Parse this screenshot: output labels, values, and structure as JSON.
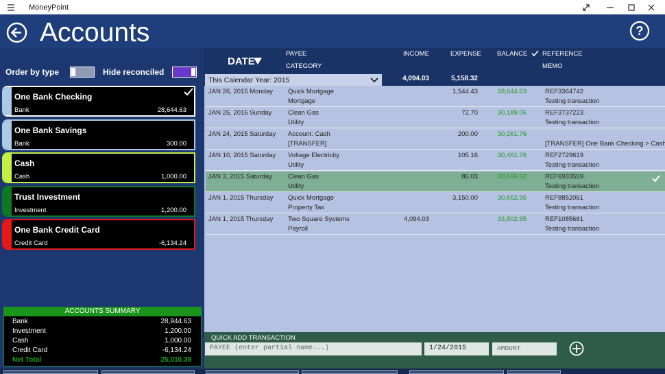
{
  "app_title": "MoneyPoint",
  "header": {
    "title": "Accounts"
  },
  "toggles": [
    {
      "label": "Order by type",
      "on": false
    },
    {
      "label": "Hide reconciled",
      "on": true
    }
  ],
  "accounts": [
    {
      "name": "One Bank Checking",
      "type": "Bank",
      "balance": "28,644.63",
      "color": "#a9cbe6",
      "selected": true
    },
    {
      "name": "One Bank Savings",
      "type": "Bank",
      "balance": "300.00",
      "color": "#a9cbe6",
      "selected": false
    },
    {
      "name": "Cash",
      "type": "Cash",
      "balance": "1,000.00",
      "color": "#c4f044",
      "selected": false
    },
    {
      "name": "Trust Investment",
      "type": "Investment",
      "balance": "1,200.00",
      "color": "#0b7a22",
      "selected": false
    },
    {
      "name": "One Bank Credit Card",
      "type": "Credit Card",
      "balance": "-6,134.24",
      "color": "#e81818",
      "selected": false
    }
  ],
  "summary": {
    "title": "ACCOUNTS SUMMARY",
    "rows": [
      {
        "label": "Bank",
        "value": "28,944.63"
      },
      {
        "label": "Investment",
        "value": "1,200.00"
      },
      {
        "label": "Cash",
        "value": "1,000.00"
      },
      {
        "label": "Credit Card",
        "value": "-6,134.24"
      }
    ],
    "total": {
      "label": "Net Total",
      "value": "25,010.39"
    }
  },
  "columns": {
    "date": "DATE",
    "payee": "PAYEE",
    "category": "CATEGORY",
    "income": "INCOME",
    "expense": "EXPENSE",
    "balance": "BALANCE",
    "reference": "REFERENCE",
    "memo": "MEMO"
  },
  "filter": "This Calendar Year: 2015",
  "totals": {
    "income": "4,094.03",
    "expense": "5,158.32"
  },
  "transactions": [
    {
      "date": "JAN 26, 2015 Monday",
      "payee": "Quick Mortgage",
      "category": "Mortgage",
      "income": null,
      "expense": "1,544.43",
      "balance": "28,644.63",
      "reference": "REF3364742",
      "memo": "Testing transaction",
      "selected": false
    },
    {
      "date": "JAN 25, 2015 Sunday",
      "payee": "Clean Gas",
      "category": "Utility",
      "income": null,
      "expense": "72.70",
      "balance": "30,189.06",
      "reference": "REF3737223",
      "memo": "Testing transaction",
      "selected": false
    },
    {
      "date": "JAN 24, 2015 Saturday",
      "payee": "Account: Cash",
      "category": "[TRANSFER]",
      "income": null,
      "expense": "200.00",
      "balance": "30,261.76",
      "reference": null,
      "memo": "[TRANSFER] One Bank Checking > Cash",
      "selected": false
    },
    {
      "date": "JAN 10, 2015 Saturday",
      "payee": "Voltage Electricity",
      "category": "Utility",
      "income": null,
      "expense": "105.16",
      "balance": "30,461.76",
      "reference": "REF2729619",
      "memo": "Testing transaction",
      "selected": false
    },
    {
      "date": "JAN 3, 2015 Saturday",
      "payee": "Clean Gas",
      "category": "Utility",
      "income": null,
      "expense": "86.03",
      "balance": "30,566.92",
      "reference": "REF6933559",
      "memo": "Testing transaction",
      "selected": true
    },
    {
      "date": "JAN 1, 2015 Thursday",
      "payee": "Quick Mortgage",
      "category": "Property Tax",
      "income": null,
      "expense": "3,150.00",
      "balance": "30,652.95",
      "reference": "REF8852061",
      "memo": "Testing transaction",
      "selected": false
    },
    {
      "date": "JAN 1, 2015 Thursday",
      "payee": "Two Square Systems",
      "category": "Payroll",
      "income": "4,094.03",
      "expense": null,
      "balance": "33,802.95",
      "reference": "REF1085661",
      "memo": "Testing transaction",
      "selected": false
    }
  ],
  "quick_add": {
    "title": "QUICK ADD TRANSACTION",
    "payee_placeholder": "PAYEE (enter partial name...)",
    "date": "1/24/2015",
    "amount_placeholder": "AMOUNT"
  }
}
